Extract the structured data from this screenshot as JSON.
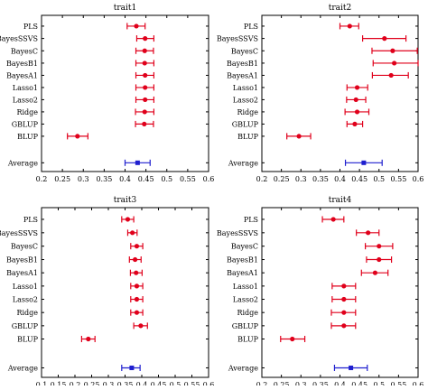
{
  "colors": {
    "point": "#e0001b",
    "average": "#1f1fcf",
    "frame": "#000000"
  },
  "chart_data": [
    {
      "type": "scatter",
      "title": "trait1",
      "categories": [
        "PLS",
        "BayesSSVS",
        "BayesC",
        "BayesB1",
        "BayesA1",
        "Lasso1",
        "Lasso2",
        "Ridge",
        "GBLUP",
        "BLUP",
        "Average"
      ],
      "xlim": [
        0.2,
        0.6
      ],
      "xticks": [
        "0.2",
        "0.25",
        "0.3",
        "0.35",
        "0.4",
        "0.45",
        "0.5",
        "0.55",
        "0.6"
      ],
      "series": [
        {
          "estimate": [
            0.427,
            0.448,
            0.447,
            0.447,
            0.448,
            0.448,
            0.448,
            0.447,
            0.446,
            0.286,
            0.43
          ],
          "lower": [
            0.405,
            0.428,
            0.426,
            0.426,
            0.426,
            0.426,
            0.426,
            0.425,
            0.425,
            0.262,
            0.4
          ],
          "upper": [
            0.448,
            0.469,
            0.468,
            0.469,
            0.469,
            0.469,
            0.469,
            0.469,
            0.468,
            0.311,
            0.46
          ]
        }
      ]
    },
    {
      "type": "scatter",
      "title": "trait2",
      "categories": [
        "PLS",
        "BayesSSVS",
        "BayesC",
        "BayesB1",
        "BayesA1",
        "Lasso1",
        "Lasso2",
        "Ridge",
        "GBLUP",
        "BLUP",
        "Average"
      ],
      "xlim": [
        0.2,
        0.6
      ],
      "xticks": [
        "0.2",
        "0.25",
        "0.3",
        "0.35",
        "0.4",
        "0.45",
        "0.5",
        "0.55",
        "0.6"
      ],
      "series": [
        {
          "estimate": [
            0.425,
            0.514,
            0.535,
            0.539,
            0.531,
            0.444,
            0.441,
            0.444,
            0.438,
            0.295,
            0.461
          ],
          "lower": [
            0.4,
            0.458,
            0.482,
            0.485,
            0.483,
            0.418,
            0.417,
            0.413,
            0.418,
            0.264,
            0.414
          ],
          "upper": [
            0.448,
            0.569,
            0.598,
            0.6,
            0.575,
            0.471,
            0.466,
            0.474,
            0.458,
            0.325,
            0.508
          ]
        }
      ]
    },
    {
      "type": "scatter",
      "title": "trait3",
      "categories": [
        "PLS",
        "BayesSSVS",
        "BayesC",
        "BayesB1",
        "BayesA1",
        "Lasso1",
        "Lasso2",
        "Ridge",
        "GBLUP",
        "BLUP",
        "Average"
      ],
      "xlim": [
        0.1,
        0.6
      ],
      "xticks": [
        "0.1",
        "0.15",
        "0.2",
        "0.25",
        "0.3",
        "0.35",
        "0.4",
        "0.45",
        "0.5",
        "0.55",
        "0.6"
      ],
      "series": [
        {
          "estimate": [
            0.358,
            0.372,
            0.385,
            0.38,
            0.383,
            0.385,
            0.385,
            0.385,
            0.397,
            0.24,
            0.37
          ],
          "lower": [
            0.34,
            0.358,
            0.367,
            0.363,
            0.366,
            0.367,
            0.367,
            0.367,
            0.376,
            0.22,
            0.34
          ],
          "upper": [
            0.376,
            0.386,
            0.403,
            0.398,
            0.401,
            0.403,
            0.403,
            0.403,
            0.417,
            0.26,
            0.395
          ]
        }
      ]
    },
    {
      "type": "scatter",
      "title": "trait4",
      "categories": [
        "PLS",
        "BayesSSVS",
        "BayesC",
        "BayesB1",
        "BayesA1",
        "Lasso1",
        "Lasso2",
        "Ridge",
        "GBLUP",
        "BLUP",
        "Average"
      ],
      "xlim": [
        0.2,
        0.6
      ],
      "xticks": [
        "0.2",
        "0.25",
        "0.3",
        "0.35",
        "0.4",
        "0.45",
        "0.5",
        "0.55",
        "0.6"
      ],
      "series": [
        {
          "estimate": [
            0.383,
            0.472,
            0.5,
            0.5,
            0.49,
            0.41,
            0.41,
            0.41,
            0.41,
            0.278,
            0.428
          ],
          "lower": [
            0.355,
            0.442,
            0.465,
            0.468,
            0.455,
            0.38,
            0.38,
            0.378,
            0.378,
            0.248,
            0.386
          ],
          "upper": [
            0.41,
            0.5,
            0.535,
            0.532,
            0.523,
            0.44,
            0.44,
            0.44,
            0.44,
            0.31,
            0.47
          ]
        }
      ]
    }
  ]
}
